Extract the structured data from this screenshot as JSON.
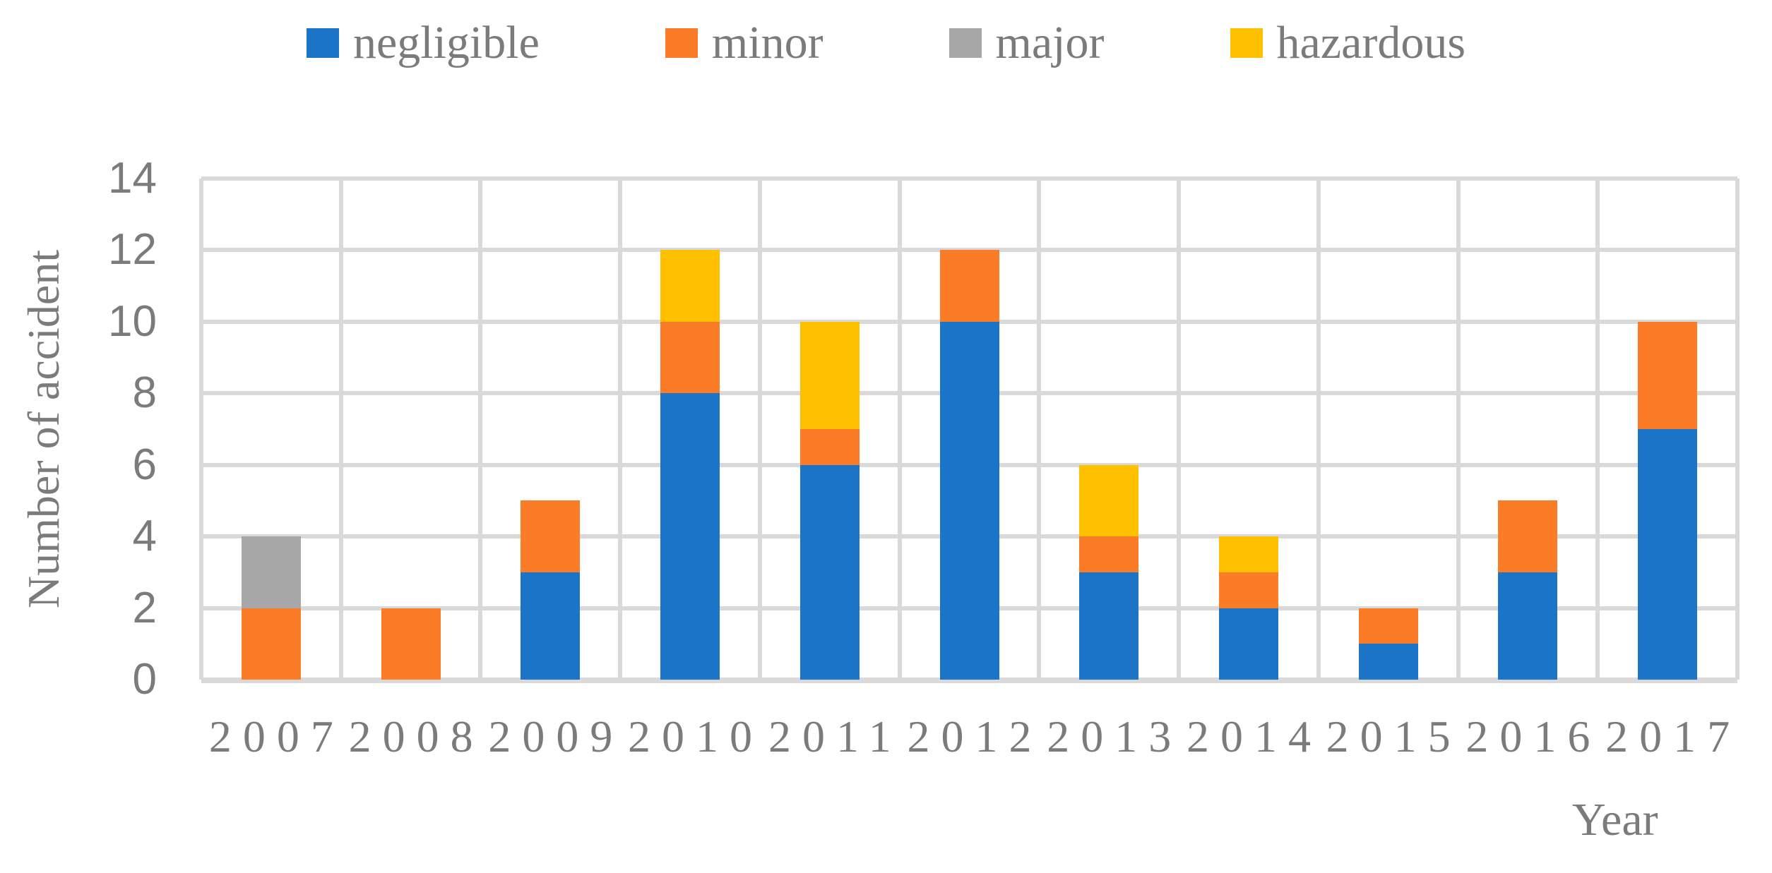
{
  "chart_data": {
    "type": "bar",
    "stacked": true,
    "categories": [
      "2007",
      "2008",
      "2009",
      "2010",
      "2011",
      "2012",
      "2013",
      "2014",
      "2015",
      "2016",
      "2017"
    ],
    "series": [
      {
        "name": "negligible",
        "color": "#1B74C8",
        "values": [
          0,
          0,
          3,
          8,
          6,
          10,
          3,
          2,
          1,
          3,
          7
        ]
      },
      {
        "name": "minor",
        "color": "#FB7C26",
        "values": [
          2,
          2,
          2,
          2,
          1,
          2,
          1,
          1,
          1,
          2,
          3
        ]
      },
      {
        "name": "major",
        "color": "#A7A7A7",
        "values": [
          2,
          0,
          0,
          0,
          0,
          0,
          0,
          0,
          0,
          0,
          0
        ]
      },
      {
        "name": "hazardous",
        "color": "#FFC000",
        "values": [
          0,
          0,
          0,
          2,
          3,
          0,
          2,
          1,
          0,
          0,
          0
        ]
      }
    ],
    "xlabel": "Year",
    "ylabel": "Number of accident",
    "ylim": [
      0,
      14
    ],
    "ytick_step": 2,
    "yticks": [
      "0",
      "2",
      "4",
      "6",
      "8",
      "10",
      "12",
      "14"
    ],
    "grid": true,
    "grid_color": "#D9D9D9",
    "text_color": "#7B7B7B",
    "legend_position": "top"
  }
}
